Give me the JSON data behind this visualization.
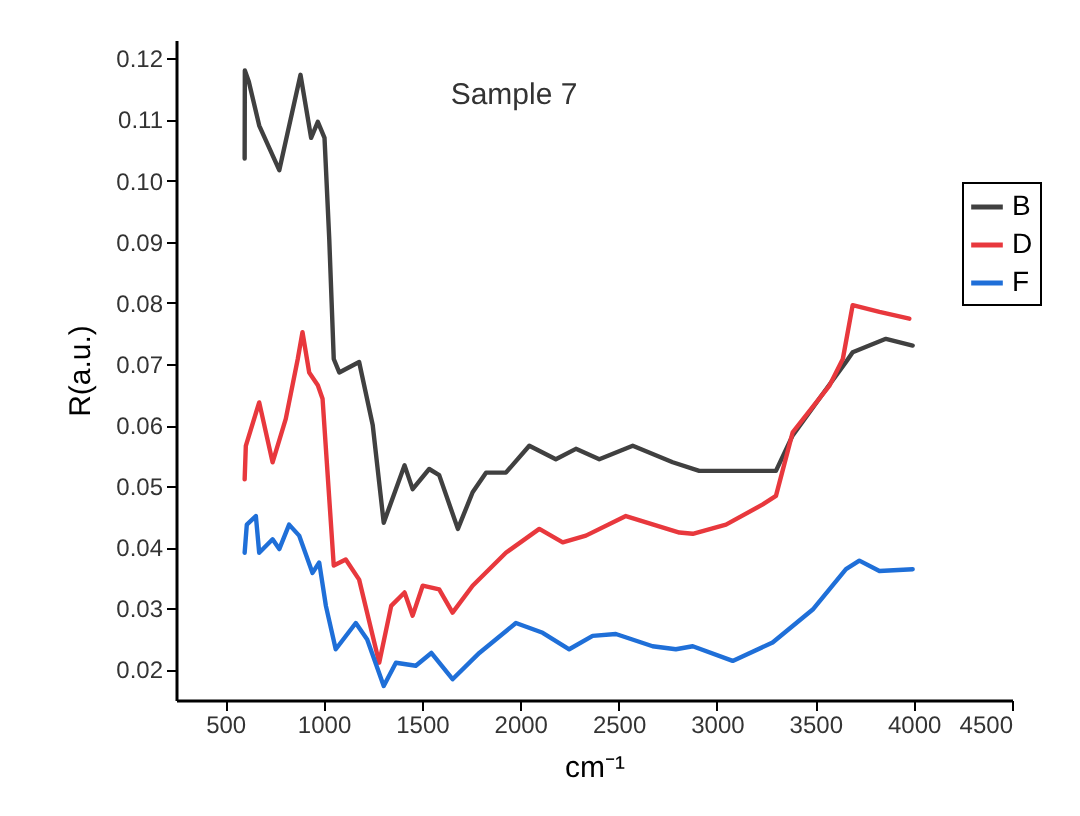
{
  "chart_data": {
    "type": "line",
    "title": "Sample 7",
    "xlabel": "cm⁻¹",
    "ylabel": "R(a.u.)",
    "xlim": [
      250,
      4500
    ],
    "ylim": [
      0.015,
      0.123
    ],
    "xticks": [
      500,
      1000,
      1500,
      2000,
      2500,
      3000,
      3500,
      4000,
      4500
    ],
    "yticks": [
      0.02,
      0.03,
      0.04,
      0.05,
      0.06,
      0.07,
      0.08,
      0.09,
      {
        "value": 0.1,
        "label": "0.10"
      },
      0.11,
      0.12
    ],
    "legend": "top right",
    "grid": false,
    "line_style": "solid",
    "marker": "none",
    "series": [
      {
        "name": "B",
        "color": "#404040",
        "x": [
          599,
          600,
          620,
          673,
          775,
          883,
          937,
          971,
          1005,
          1029,
          1052,
          1080,
          1181,
          1250,
          1306,
          1412,
          1453,
          1537,
          1588,
          1683,
          1758,
          1826,
          1927,
          2046,
          2181,
          2283,
          2402,
          2572,
          2775,
          2910,
          3300,
          3385,
          3520,
          3656,
          3690,
          3859,
          3995
        ],
        "values": [
          0.1036,
          0.118,
          0.1162,
          0.109,
          0.1017,
          0.1173,
          0.107,
          0.1096,
          0.107,
          0.0905,
          0.0708,
          0.0686,
          0.0703,
          0.06,
          0.044,
          0.0534,
          0.0495,
          0.0528,
          0.0518,
          0.043,
          0.049,
          0.0522,
          0.0522,
          0.0566,
          0.0544,
          0.0561,
          0.0544,
          0.0566,
          0.0539,
          0.0525,
          0.0525,
          0.0583,
          0.0643,
          0.0703,
          0.0719,
          0.0741,
          0.073
        ]
      },
      {
        "name": "D",
        "color": "#e8383d",
        "x": [
          599,
          605,
          673,
          741,
          808,
          869,
          893,
          927,
          971,
          995,
          1052,
          1113,
          1181,
          1283,
          1344,
          1412,
          1453,
          1504,
          1588,
          1656,
          1758,
          1927,
          2097,
          2216,
          2334,
          2537,
          2809,
          2877,
          3046,
          3233,
          3300,
          3385,
          3571,
          3640,
          3690,
          3826,
          3978
        ],
        "values": [
          0.0511,
          0.0566,
          0.0637,
          0.0539,
          0.061,
          0.0708,
          0.0752,
          0.0686,
          0.0665,
          0.0643,
          0.037,
          0.038,
          0.0347,
          0.0211,
          0.0304,
          0.0326,
          0.0288,
          0.0337,
          0.0331,
          0.0293,
          0.0337,
          0.0391,
          0.043,
          0.0408,
          0.0419,
          0.0451,
          0.0424,
          0.0422,
          0.0437,
          0.047,
          0.0484,
          0.0588,
          0.0664,
          0.0708,
          0.0796,
          0.0785,
          0.0774
        ]
      },
      {
        "name": "F",
        "color": "#1f6fd8",
        "x": [
          599,
          610,
          656,
          673,
          741,
          775,
          825,
          876,
          944,
          978,
          1012,
          1062,
          1164,
          1222,
          1306,
          1368,
          1469,
          1548,
          1656,
          1792,
          1978,
          2114,
          2249,
          2368,
          2486,
          2673,
          2791,
          2877,
          3080,
          3283,
          3487,
          3656,
          3724,
          3826,
          3995
        ],
        "values": [
          0.0391,
          0.0437,
          0.0451,
          0.0391,
          0.0413,
          0.0397,
          0.0437,
          0.0419,
          0.0358,
          0.0375,
          0.0304,
          0.0233,
          0.0276,
          0.0249,
          0.0173,
          0.0211,
          0.0206,
          0.0227,
          0.0184,
          0.0227,
          0.0276,
          0.026,
          0.0233,
          0.0255,
          0.0258,
          0.0238,
          0.0233,
          0.0238,
          0.0214,
          0.0244,
          0.0298,
          0.0364,
          0.0378,
          0.0361,
          0.0364
        ]
      }
    ]
  }
}
